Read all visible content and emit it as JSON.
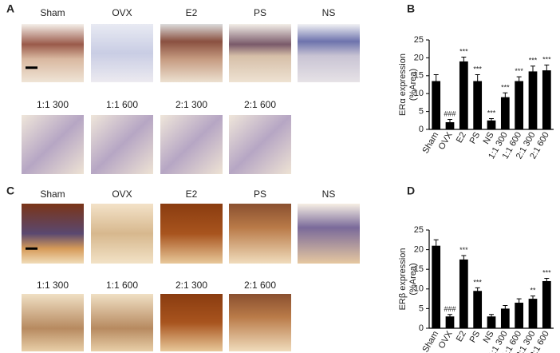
{
  "panel_labels": [
    "A",
    "B",
    "C",
    "D"
  ],
  "image_panels": [
    {
      "labels": [
        "Sham",
        "OVX",
        "E2",
        "PS",
        "NS",
        "1:1 300",
        "1:1 600",
        "2:1 300",
        "2:1 600"
      ]
    },
    {
      "labels": [
        "Sham",
        "OVX",
        "E2",
        "PS",
        "NS",
        "1:1 300",
        "1:1 600",
        "2:1 300",
        "2:1 600"
      ]
    }
  ],
  "chart_data": [
    {
      "type": "bar",
      "ylabel_lines": [
        "ERα expression",
        "(%Area)"
      ],
      "categories": [
        "Sham",
        "OVX",
        "E2",
        "PS",
        "NS",
        "1:1 300",
        "1:1 600",
        "2:1 300",
        "2:1 600"
      ],
      "values": [
        13.5,
        2,
        19,
        13.5,
        2.5,
        9,
        13.5,
        16.2,
        16.5
      ],
      "errors": [
        1.8,
        0.8,
        1.2,
        1.8,
        0.5,
        1.2,
        1.2,
        1.5,
        1.5
      ],
      "annotations": [
        null,
        "###",
        "***",
        "***",
        "***",
        "***",
        "***",
        "***",
        "***"
      ],
      "color": "#000000",
      "ylim": [
        0,
        25
      ],
      "yticks": [
        0,
        5,
        10,
        15,
        20,
        25
      ]
    },
    {
      "type": "bar",
      "ylabel_lines": [
        "ERβ expression",
        "(%Area)"
      ],
      "categories": [
        "Sham",
        "OVX",
        "E2",
        "PS",
        "NS",
        "1:1 300",
        "1:1 600",
        "2:1 300",
        "2:1 600"
      ],
      "values": [
        21,
        3,
        17.5,
        9.5,
        3,
        5,
        6.5,
        7.5,
        12
      ],
      "errors": [
        1.5,
        0.5,
        1,
        0.8,
        0.5,
        0.8,
        1,
        0.7,
        0.7
      ],
      "annotations": [
        null,
        "###",
        "***",
        "***",
        null,
        null,
        null,
        "**",
        "***"
      ],
      "color": "#000000",
      "ylim": [
        0,
        25
      ],
      "yticks": [
        0,
        5,
        10,
        15,
        20,
        25
      ]
    }
  ]
}
